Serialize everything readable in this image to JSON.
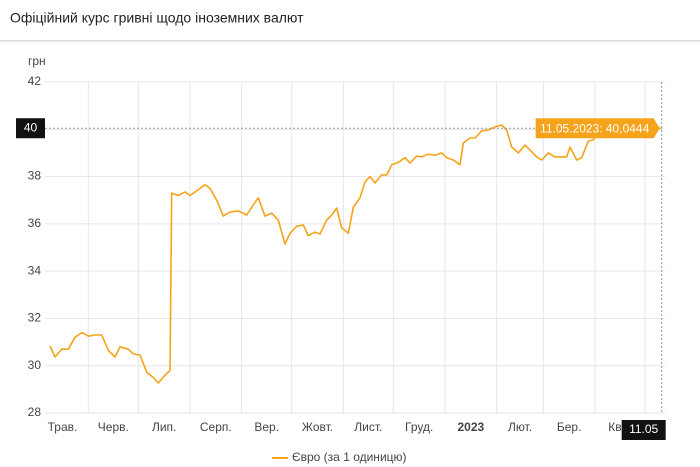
{
  "chart_data": {
    "type": "line",
    "title": "Офіційний курс гривні щодо іноземних валют",
    "y_label": "грн",
    "xlim": [
      "06.05.2022",
      "13.05.2023"
    ],
    "xticks": [
      {
        "value": "01.05.2022",
        "label": "Трав."
      },
      {
        "value": "01.06.2022",
        "label": "Черв."
      },
      {
        "value": "01.07.2022",
        "label": "Лип."
      },
      {
        "value": "01.08.2022",
        "label": "Серп."
      },
      {
        "value": "01.09.2022",
        "label": "Вер."
      },
      {
        "value": "01.10.2022",
        "label": "Жовт."
      },
      {
        "value": "01.11.2022",
        "label": "Лист."
      },
      {
        "value": "01.12.2022",
        "label": "Груд."
      },
      {
        "value": "01.01.2023",
        "label": "2023"
      },
      {
        "value": "01.02.2023",
        "label": "Лют."
      },
      {
        "value": "01.03.2023",
        "label": "Бер."
      },
      {
        "value": "01.04.2023",
        "label": "Квіт."
      },
      {
        "value": "01.05.2023",
        "label": null
      }
    ],
    "ylim": [
      28,
      42
    ],
    "yticks": [
      28,
      30,
      32,
      34,
      36,
      38,
      40,
      42
    ],
    "grid": true,
    "x": [
      "09.05.2022",
      "12.05.2022",
      "16.05.2022",
      "20.05.2022",
      "24.05.2022",
      "28.05.2022",
      "01.06.2022",
      "05.06.2022",
      "09.06.2022",
      "13.06.2022",
      "17.06.2022",
      "20.06.2022",
      "25.06.2022",
      "28.06.2022",
      "02.07.2022",
      "06.07.2022",
      "10.07.2022",
      "13.07.2022",
      "17.07.2022",
      "20.07.2022",
      "21.07.2022",
      "25.07.2022",
      "29.07.2022",
      "01.08.2022",
      "06.08.2022",
      "10.08.2022",
      "13.08.2022",
      "17.08.2022",
      "21.08.2022",
      "25.08.2022",
      "30.08.2022",
      "04.09.2022",
      "08.09.2022",
      "11.09.2022",
      "15.09.2022",
      "19.09.2022",
      "23.09.2022",
      "27.09.2022",
      "30.09.2022",
      "04.10.2022",
      "08.10.2022",
      "11.10.2022",
      "15.10.2022",
      "18.10.2022",
      "22.10.2022",
      "25.10.2022",
      "28.10.2022",
      "31.10.2022",
      "04.11.2022",
      "07.11.2022",
      "11.11.2022",
      "14.11.2022",
      "17.11.2022",
      "20.11.2022",
      "24.11.2022",
      "27.11.2022",
      "30.11.2022",
      "04.12.2022",
      "08.12.2022",
      "11.12.2022",
      "15.12.2022",
      "18.12.2022",
      "22.12.2022",
      "26.12.2022",
      "30.12.2022",
      "02.01.2023",
      "06.01.2023",
      "10.01.2023",
      "12.01.2023",
      "16.01.2023",
      "19.01.2023",
      "23.01.2023",
      "27.01.2023",
      "31.01.2023",
      "04.02.2023",
      "07.02.2023",
      "10.02.2023",
      "14.02.2023",
      "18.02.2023",
      "21.02.2023",
      "25.02.2023",
      "28.02.2023",
      "04.03.2023",
      "08.03.2023",
      "11.03.2023",
      "15.03.2023",
      "17.03.2023",
      "21.03.2023",
      "24.03.2023",
      "28.03.2023",
      "31.03.2023",
      "03.04.2023",
      "09.04.2023",
      "15.04.2023",
      "21.04.2023",
      "27.04.2023",
      "03.05.2023",
      "11.05.2023"
    ],
    "series": [
      {
        "name": "Євро (за 1 одиницю)",
        "color": "#f5a31a",
        "values": [
          30.83,
          30.37,
          30.7,
          30.7,
          31.2,
          31.4,
          31.25,
          31.3,
          31.3,
          30.65,
          30.37,
          30.8,
          30.7,
          30.5,
          30.45,
          29.73,
          29.5,
          29.27,
          29.6,
          29.8,
          37.3,
          37.2,
          37.35,
          37.2,
          37.45,
          37.65,
          37.5,
          37.0,
          36.33,
          36.5,
          36.55,
          36.37,
          36.8,
          37.1,
          36.33,
          36.45,
          36.16,
          35.15,
          35.6,
          35.9,
          35.95,
          35.5,
          35.65,
          35.57,
          36.16,
          36.37,
          36.67,
          35.83,
          35.6,
          36.7,
          37.1,
          37.77,
          38.0,
          37.73,
          38.07,
          38.07,
          38.5,
          38.6,
          38.8,
          38.57,
          38.87,
          38.83,
          38.95,
          38.9,
          39.0,
          38.8,
          38.7,
          38.5,
          39.42,
          39.63,
          39.63,
          39.93,
          39.97,
          40.1,
          40.18,
          39.97,
          39.25,
          39.0,
          39.33,
          39.12,
          38.83,
          38.7,
          39.0,
          38.83,
          38.83,
          38.83,
          39.25,
          38.7,
          38.8,
          39.5,
          39.55,
          39.88,
          39.8,
          39.9,
          39.95,
          40.0,
          40.05,
          40.0444
        ]
      }
    ],
    "crosshair": {
      "tooltip": "11.05.2023: 40,0444",
      "y_label": "40",
      "x_label": "11.05"
    }
  }
}
